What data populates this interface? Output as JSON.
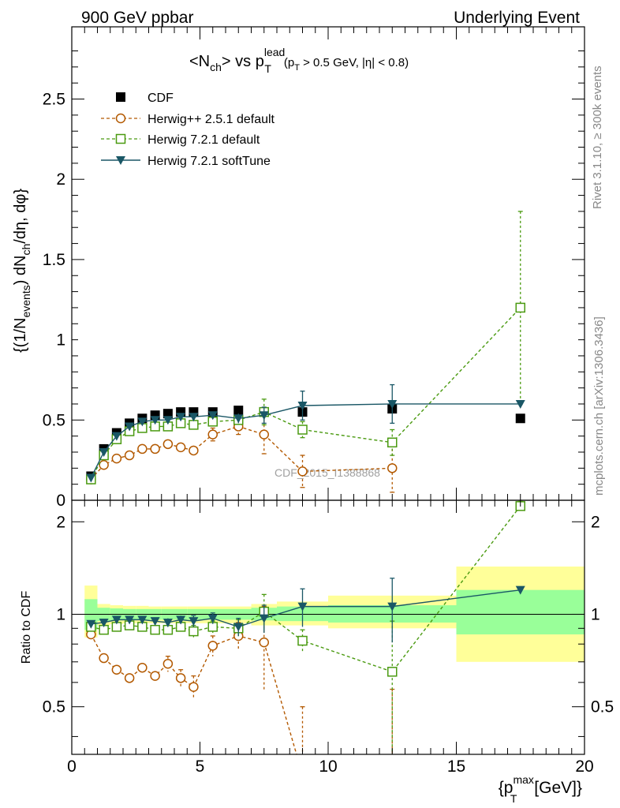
{
  "header": {
    "left": "900 GeV ppbar",
    "right": "Underlying Event"
  },
  "title": {
    "main": "<N",
    "ch_sub": "ch",
    "vs": "> vs p",
    "lead_sup": "lead",
    "t_sub": "T",
    "cut_open": "(p",
    "cut_t": "T",
    "cut_rest": " > 0.5 GeV, |η| < 0.8)"
  },
  "ylabel_main": {
    "p1": "{(1/N",
    "p1_sub": "events",
    "p2": ") dN",
    "p2_sub": "ch",
    "p3": "/dη, dφ}"
  },
  "ylabel_ratio": "Ratio to CDF",
  "xlabel": {
    "open": "{p",
    "sup": "max",
    "sub": "T",
    "close": " [GeV]}"
  },
  "side": {
    "rivet": "Rivet 3.1.10, ≥ 300k events",
    "mcplots": "mcplots.cern.ch [arXiv:1306.3436]"
  },
  "watermark": "CDF_2015_I1388868",
  "legend": [
    "CDF",
    "Herwig++ 2.5.1 default",
    "Herwig 7.2.1 default",
    "Herwig 7.2.1 softTune"
  ],
  "colors": {
    "cdf": "#000000",
    "herwigpp": "#b35900",
    "h7default": "#4a9a10",
    "softtune": "#1a5766",
    "band_inner": "#99ff99",
    "band_outer": "#ffff99"
  },
  "chart_data": {
    "type": "line",
    "xlim": [
      0,
      20
    ],
    "main_ylim": [
      0,
      2.95
    ],
    "ratio_ylim": [
      0.35,
      2.35
    ],
    "ratio_scale": "log",
    "main_yticks": [
      "0",
      "0.5",
      "1",
      "1.5",
      "2",
      "2.5"
    ],
    "main_ytick_values": [
      0,
      0.5,
      1,
      1.5,
      2,
      2.5
    ],
    "ratio_yticks": [
      "0.5",
      "1",
      "2"
    ],
    "ratio_ytick_values": [
      0.5,
      1,
      2
    ],
    "xticks": [
      "0",
      "5",
      "10",
      "15",
      "20"
    ],
    "xtick_values": [
      0,
      5,
      10,
      15,
      20
    ],
    "series": [
      {
        "name": "CDF",
        "x": [
          0.75,
          1.25,
          1.75,
          2.25,
          2.75,
          3.25,
          3.75,
          4.25,
          4.75,
          5.5,
          6.5,
          7.5,
          9,
          12.5,
          17.5
        ],
        "y": [
          0.15,
          0.32,
          0.42,
          0.48,
          0.51,
          0.53,
          0.54,
          0.55,
          0.55,
          0.55,
          0.56,
          0.55,
          0.55,
          0.57,
          0.51
        ],
        "xerr": [
          0.25,
          0.25,
          0.25,
          0.25,
          0.25,
          0.25,
          0.25,
          0.25,
          0.25,
          0.5,
          0.5,
          0.5,
          1,
          2.5,
          2.5
        ]
      },
      {
        "name": "Herwig++ 2.5.1 default",
        "x": [
          0.75,
          1.25,
          1.75,
          2.25,
          2.75,
          3.25,
          3.75,
          4.25,
          4.75,
          5.5,
          6.5,
          7.5,
          9,
          12.5
        ],
        "y": [
          0.13,
          0.22,
          0.26,
          0.28,
          0.32,
          0.32,
          0.35,
          0.33,
          0.31,
          0.41,
          0.46,
          0.41,
          0.18,
          0.2
        ],
        "yerr": [
          0.01,
          0.01,
          0.01,
          0.01,
          0.01,
          0.01,
          0.015,
          0.02,
          0.03,
          0.04,
          0.05,
          0.12,
          0.1,
          0.15
        ],
        "ratio": [
          0.86,
          0.72,
          0.66,
          0.62,
          0.67,
          0.63,
          0.69,
          0.62,
          0.58,
          0.79,
          0.85,
          0.81,
          0.3,
          0.32
        ],
        "ratio_err": [
          0.02,
          0.02,
          0.02,
          0.02,
          0.02,
          0.02,
          0.04,
          0.04,
          0.05,
          0.06,
          0.09,
          0.25,
          0.2,
          0.25
        ]
      },
      {
        "name": "Herwig 7.2.1 default",
        "x": [
          0.75,
          1.25,
          1.75,
          2.25,
          2.75,
          3.25,
          3.75,
          4.25,
          4.75,
          5.5,
          6.5,
          7.5,
          9,
          12.5,
          17.5
        ],
        "y": [
          0.13,
          0.28,
          0.38,
          0.43,
          0.45,
          0.46,
          0.46,
          0.48,
          0.47,
          0.49,
          0.5,
          0.55,
          0.44,
          0.36,
          1.2
        ],
        "yerr": [
          0.01,
          0.01,
          0.01,
          0.01,
          0.01,
          0.01,
          0.015,
          0.015,
          0.02,
          0.02,
          0.03,
          0.08,
          0.05,
          0.08,
          0.6
        ],
        "ratio": [
          0.91,
          0.89,
          0.91,
          0.92,
          0.91,
          0.89,
          0.89,
          0.91,
          0.88,
          0.91,
          0.9,
          1.02,
          0.82,
          0.65,
          2.25
        ],
        "ratio_err": [
          0.02,
          0.02,
          0.02,
          0.02,
          0.02,
          0.02,
          0.03,
          0.03,
          0.04,
          0.04,
          0.06,
          0.14,
          0.07,
          0.3,
          0.08
        ]
      },
      {
        "name": "Herwig 7.2.1 softTune",
        "x": [
          0.75,
          1.25,
          1.75,
          2.25,
          2.75,
          3.25,
          3.75,
          4.25,
          4.75,
          5.5,
          6.5,
          7.5,
          9,
          12.5,
          17.5
        ],
        "y": [
          0.14,
          0.3,
          0.4,
          0.46,
          0.49,
          0.5,
          0.5,
          0.52,
          0.52,
          0.53,
          0.51,
          0.53,
          0.59,
          0.6,
          0.6
        ],
        "yerr": [
          0.01,
          0.01,
          0.01,
          0.01,
          0.01,
          0.01,
          0.015,
          0.015,
          0.02,
          0.02,
          0.03,
          0.05,
          0.09,
          0.12,
          0.02
        ],
        "ratio": [
          0.93,
          0.94,
          0.96,
          0.96,
          0.96,
          0.95,
          0.94,
          0.96,
          0.95,
          0.97,
          0.91,
          0.97,
          1.06,
          1.06,
          1.2
        ],
        "ratio_err": [
          0.02,
          0.02,
          0.02,
          0.02,
          0.02,
          0.02,
          0.03,
          0.03,
          0.04,
          0.04,
          0.06,
          0.1,
          0.15,
          0.25,
          0.03
        ]
      }
    ],
    "ratio_bands": {
      "x_low": [
        0.5,
        1,
        1.5,
        2,
        2.5,
        3,
        3.5,
        4,
        4.5,
        5,
        6,
        7,
        8,
        10,
        15
      ],
      "x_high": [
        1,
        1.5,
        2,
        2.5,
        3,
        3.5,
        4,
        4.5,
        5,
        6,
        7,
        8,
        10,
        15,
        20
      ],
      "inner_low": [
        0.89,
        0.95,
        0.955,
        0.96,
        0.96,
        0.96,
        0.96,
        0.96,
        0.96,
        0.96,
        0.96,
        0.955,
        0.95,
        0.94,
        0.86
      ],
      "inner_high": [
        1.12,
        1.05,
        1.045,
        1.04,
        1.04,
        1.04,
        1.04,
        1.04,
        1.04,
        1.04,
        1.04,
        1.05,
        1.06,
        1.07,
        1.2
      ],
      "outer_low": [
        0.84,
        0.92,
        0.93,
        0.935,
        0.935,
        0.935,
        0.935,
        0.935,
        0.935,
        0.935,
        0.935,
        0.92,
        0.92,
        0.9,
        0.7
      ],
      "outer_high": [
        1.24,
        1.08,
        1.07,
        1.065,
        1.065,
        1.06,
        1.06,
        1.06,
        1.06,
        1.06,
        1.06,
        1.08,
        1.1,
        1.15,
        1.43
      ]
    }
  }
}
